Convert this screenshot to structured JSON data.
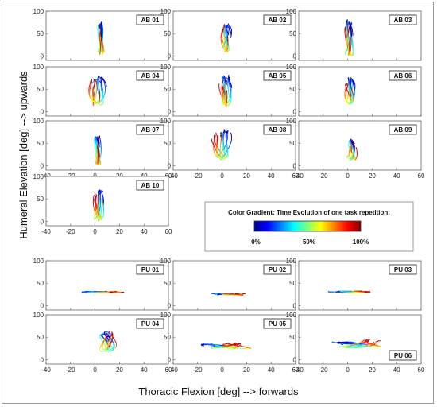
{
  "chart_data": {
    "type": "line",
    "xlabel": "Thoracic Flexion [deg]  --> forwards",
    "ylabel": "Humeral Elevation [deg]  --> upwards",
    "xlim": [
      -40,
      60
    ],
    "ylim": [
      -10,
      100
    ],
    "x_ticks": [
      "-40",
      "-20",
      "0",
      "20",
      "40",
      "60"
    ],
    "y_ticks": [
      "0",
      "50",
      "100"
    ],
    "grid": false,
    "legend": {
      "title": "Color Gradient: Time Evolution of one task repetition:",
      "ticks": [
        "0%",
        "50%",
        "100%"
      ],
      "colormap": "jet"
    },
    "panels": [
      {
        "label": "AB 01",
        "center": [
          5,
          40
        ],
        "spread": [
          4,
          30
        ],
        "tilt": 1.2,
        "tail": [
          0,
          -0.1
        ],
        "seed": 1
      },
      {
        "label": "AB 02",
        "center": [
          3,
          40
        ],
        "spread": [
          6,
          30
        ],
        "tilt": 1.0,
        "tail": [
          -0.5,
          -0.1
        ],
        "seed": 2
      },
      {
        "label": "AB 03",
        "center": [
          1,
          40
        ],
        "spread": [
          5,
          30
        ],
        "tilt": 1.3,
        "tail": [
          -0.3,
          -0.1
        ],
        "seed": 3
      },
      {
        "label": "AB 04",
        "center": [
          2,
          45
        ],
        "spread": [
          8,
          30
        ],
        "tilt": 1.0,
        "tail": [
          -0.8,
          -0.2
        ],
        "seed": 4
      },
      {
        "label": "AB 05",
        "center": [
          2,
          45
        ],
        "spread": [
          7,
          30
        ],
        "tilt": 1.1,
        "tail": [
          -0.6,
          -0.2
        ],
        "seed": 5
      },
      {
        "label": "AB 06",
        "center": [
          2,
          45
        ],
        "spread": [
          6,
          25
        ],
        "tilt": 1.1,
        "tail": [
          -0.5,
          -0.2
        ],
        "seed": 6
      },
      {
        "label": "AB 07",
        "center": [
          2,
          35
        ],
        "spread": [
          4,
          25
        ],
        "tilt": 1.3,
        "tail": [
          -0.3,
          -0.1
        ],
        "seed": 7
      },
      {
        "label": "AB 08",
        "center": [
          0,
          45
        ],
        "spread": [
          8,
          35
        ],
        "tilt": 0.9,
        "tail": [
          -1.0,
          -0.2
        ],
        "seed": 8
      },
      {
        "label": "AB 09",
        "center": [
          4,
          35
        ],
        "spread": [
          6,
          28
        ],
        "tilt": 0.8,
        "tail": [
          0.3,
          -0.1
        ],
        "seed": 9
      },
      {
        "label": "AB 10",
        "center": [
          3,
          35
        ],
        "spread": [
          5,
          28
        ],
        "tilt": 1.2,
        "tail": [
          -0.7,
          -0.2
        ],
        "seed": 10
      },
      {
        "label": "PU 01",
        "center": [
          5,
          30
        ],
        "spread": [
          18,
          8
        ],
        "tilt": 0.1,
        "tail": [
          1.0,
          0.05
        ],
        "seed": 11
      },
      {
        "label": "PU 02",
        "center": [
          5,
          25
        ],
        "spread": [
          15,
          10
        ],
        "tilt": 0.1,
        "tail": [
          1.0,
          0.05
        ],
        "seed": 12
      },
      {
        "label": "PU 03",
        "center": [
          3,
          30
        ],
        "spread": [
          20,
          10
        ],
        "tilt": 0.1,
        "tail": [
          1.0,
          0.05
        ],
        "seed": 13
      },
      {
        "label": "PU 04",
        "center": [
          10,
          40
        ],
        "spread": [
          10,
          30
        ],
        "tilt": 0.7,
        "tail": [
          0.4,
          0.2
        ],
        "seed": 14
      },
      {
        "label": "PU 05",
        "center": [
          5,
          30
        ],
        "spread": [
          22,
          15
        ],
        "tilt": 0.3,
        "tail": [
          1.0,
          0.2
        ],
        "seed": 15
      },
      {
        "label": "PU 06",
        "center": [
          10,
          35
        ],
        "spread": [
          25,
          18
        ],
        "tilt": 0.4,
        "tail": [
          1.0,
          0.3
        ],
        "seed": 16
      }
    ]
  }
}
